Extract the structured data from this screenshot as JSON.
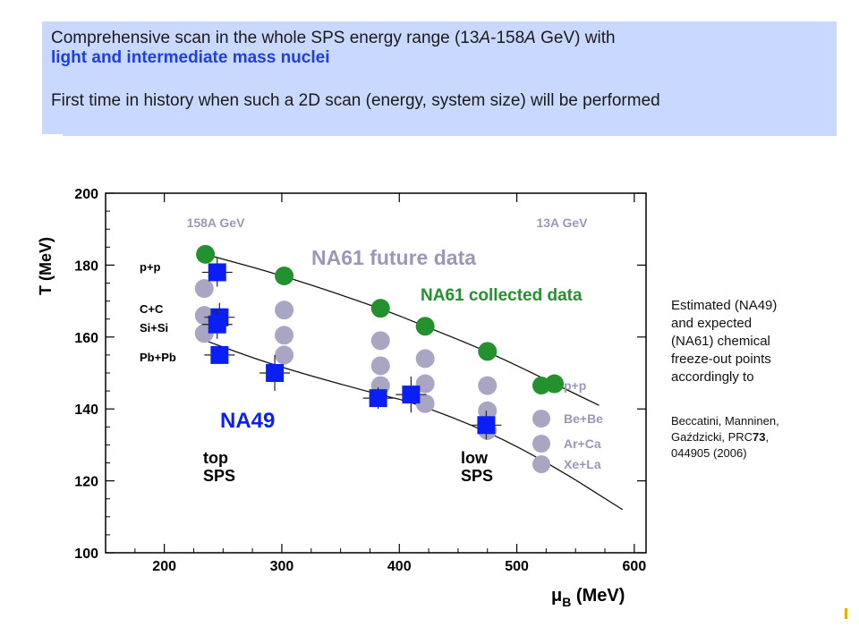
{
  "banner": {
    "line1_a": "Comprehensive scan in the whole SPS energy range (13",
    "line1_i1": "A",
    "line1_b": "-158",
    "line1_i2": "A",
    "line1_c": " GeV) with",
    "line2": "light and intermediate mass nuclei",
    "line3": "First time in history when such a 2D scan (energy, system size) will be performed"
  },
  "side_note": {
    "text": "Estimated (NA49) and expected (NA61) chemical freeze-out points accordingly to",
    "lines": [
      "Estimated (NA49)",
      "and expected",
      "(NA61) chemical",
      "freeze-out points",
      "accordingly to"
    ]
  },
  "reference": {
    "lines": [
      "Beccatini, Manninen,",
      "Gaździcki,  PRC",
      "044905 (2006)"
    ],
    "volume": "73"
  },
  "colors": {
    "green": "#23912d",
    "blue": "#0a1ff5",
    "gray": "#a8a6c2",
    "gray_text": "#9a98b8",
    "banner_bg": "#c8d8fe"
  },
  "chart_data": {
    "type": "scatter",
    "xlabel": "μ",
    "xlabel_sub": "B",
    "xlabel_unit": " (MeV)",
    "ylabel": "T (MeV)",
    "xlim": [
      150,
      610
    ],
    "ylim": [
      100,
      200
    ],
    "x_ticks": [
      200,
      300,
      400,
      500,
      600
    ],
    "y_ticks": [
      100,
      120,
      140,
      160,
      180,
      200
    ],
    "grid": false,
    "annotations": {
      "energy_high": "158A GeV",
      "energy_low": "13A GeV",
      "future": "NA61 future data",
      "collected": "NA61 collected data",
      "na49": "NA49",
      "top_sps": [
        "top",
        "SPS"
      ],
      "low_sps": [
        "low",
        "SPS"
      ],
      "systems_left": [
        "p+p",
        "C+C",
        "Si+Si",
        "Pb+Pb"
      ]
    },
    "series": [
      {
        "name": "NA61 collected data",
        "marker": "circle",
        "color": "#23912d",
        "points": [
          [
            235,
            183
          ],
          [
            302,
            177
          ],
          [
            384,
            168
          ],
          [
            422,
            163
          ],
          [
            475,
            156
          ],
          [
            532,
            147
          ]
        ]
      },
      {
        "name": "NA61 future data",
        "marker": "circle",
        "color": "#a8a6c2",
        "points": [
          [
            234,
            173.5
          ],
          [
            234,
            166
          ],
          [
            234,
            161
          ],
          [
            302,
            167.5
          ],
          [
            302,
            160.5
          ],
          [
            302,
            155
          ],
          [
            384,
            159
          ],
          [
            384,
            152
          ],
          [
            384,
            146.5
          ],
          [
            422,
            154
          ],
          [
            422,
            147
          ],
          [
            422,
            141.5
          ],
          [
            475,
            146.5
          ],
          [
            475,
            139.5
          ],
          [
            475,
            134
          ]
        ]
      },
      {
        "name": "NA49",
        "marker": "square",
        "color": "#0a1ff5",
        "points": [
          [
            245,
            178,
            4
          ],
          [
            247,
            165.5,
            4
          ],
          [
            245,
            163.5,
            4
          ],
          [
            247,
            155,
            2.5
          ],
          [
            294,
            150,
            5
          ],
          [
            382,
            143,
            3
          ],
          [
            410,
            144,
            5
          ],
          [
            474,
            135.5,
            4
          ]
        ]
      }
    ],
    "curves": [
      {
        "name": "upper",
        "points": [
          [
            235,
            183
          ],
          [
            302,
            177
          ],
          [
            384,
            168
          ],
          [
            422,
            163
          ],
          [
            475,
            156
          ],
          [
            532,
            147
          ],
          [
            570,
            141
          ]
        ]
      },
      {
        "name": "lower",
        "points": [
          [
            235,
            159
          ],
          [
            294,
            152
          ],
          [
            382,
            144
          ],
          [
            410,
            142
          ],
          [
            474,
            134
          ],
          [
            532,
            124
          ],
          [
            590,
            112
          ]
        ]
      }
    ],
    "legend": {
      "placement": "bottom-right",
      "entries": [
        {
          "label": "p+p",
          "color": "#23912d"
        },
        {
          "label": "Be+Be",
          "color": "#a8a6c2"
        },
        {
          "label": "Ar+Ca",
          "color": "#a8a6c2"
        },
        {
          "label": "Xe+La",
          "color": "#a8a6c2"
        }
      ]
    }
  }
}
